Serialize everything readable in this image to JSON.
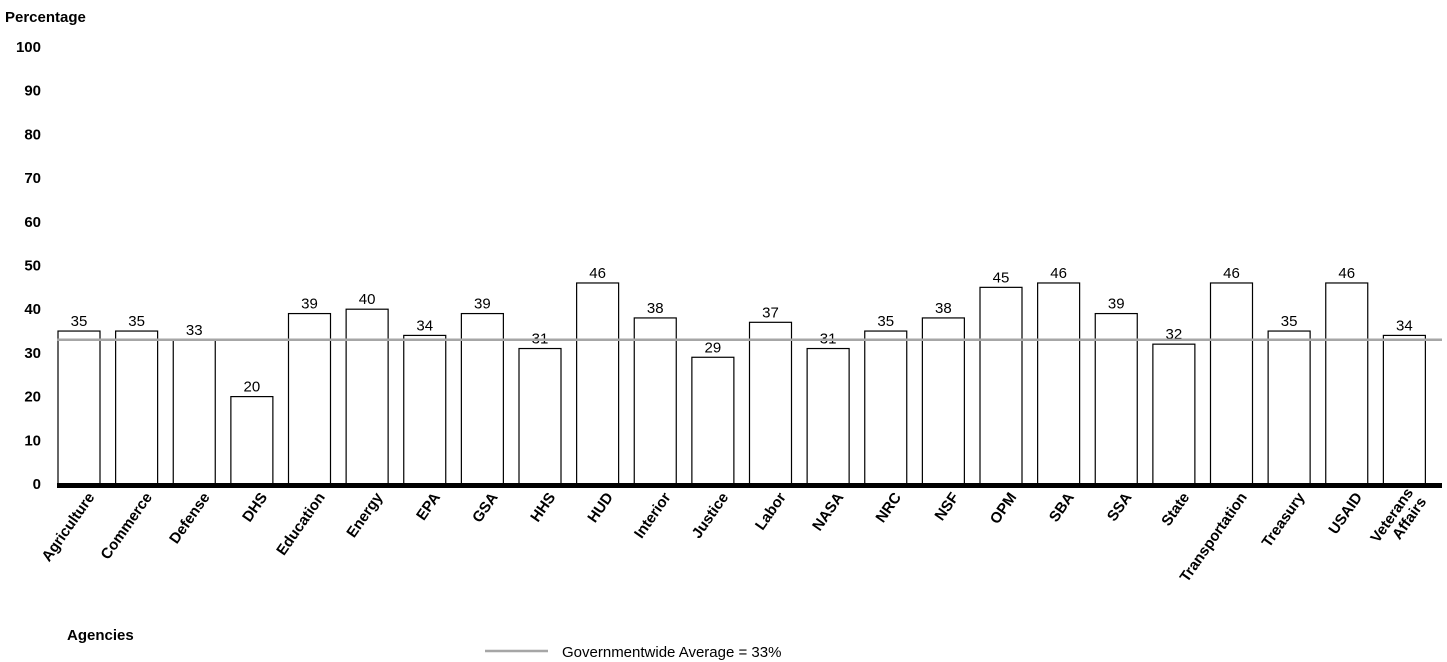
{
  "chart_data": {
    "type": "bar",
    "ylabel": "Percentage",
    "xlabel": "Agencies",
    "ylim": [
      0,
      100
    ],
    "yticks": [
      0,
      10,
      20,
      30,
      40,
      50,
      60,
      70,
      80,
      90,
      100
    ],
    "grid": false,
    "categories": [
      [
        "Agriculture"
      ],
      [
        "Commerce"
      ],
      [
        "Defense"
      ],
      [
        "DHS"
      ],
      [
        "Education"
      ],
      [
        "Energy"
      ],
      [
        "EPA"
      ],
      [
        "GSA"
      ],
      [
        "HHS"
      ],
      [
        "HUD"
      ],
      [
        "Interior"
      ],
      [
        "Justice"
      ],
      [
        "Labor"
      ],
      [
        "NASA"
      ],
      [
        "NRC"
      ],
      [
        "NSF"
      ],
      [
        "OPM"
      ],
      [
        "SBA"
      ],
      [
        "SSA"
      ],
      [
        "State"
      ],
      [
        "Transportation"
      ],
      [
        "Treasury"
      ],
      [
        "USAID"
      ],
      [
        "Veterans",
        "Affairs"
      ]
    ],
    "values": [
      35,
      35,
      33,
      20,
      39,
      40,
      34,
      39,
      31,
      46,
      38,
      29,
      37,
      31,
      35,
      38,
      45,
      46,
      39,
      32,
      46,
      35,
      46,
      34
    ],
    "reference_line": {
      "value": 33,
      "label": "Governmentwide Average = 33%",
      "color": "#a6a6a6"
    },
    "legend_position": "bottom-center",
    "colors": {
      "bar_fill": "#ffffff",
      "bar_stroke": "#000000",
      "baseline": "#000000"
    }
  }
}
